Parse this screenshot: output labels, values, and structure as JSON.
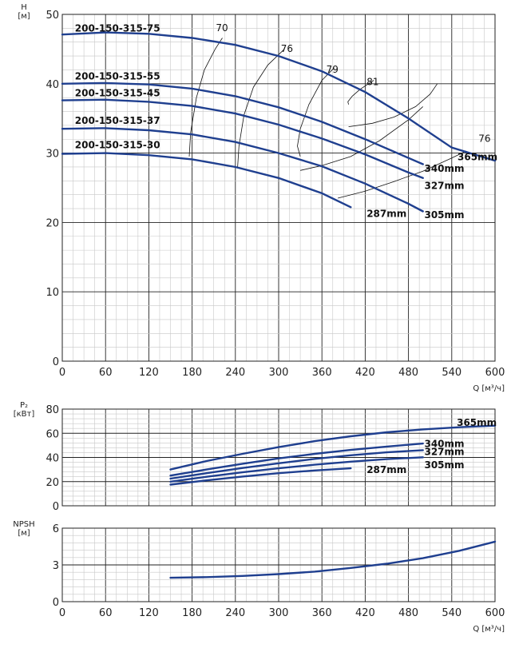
{
  "chart_data": [
    {
      "type": "line",
      "name": "head",
      "ylabel": "H\n[м]",
      "xlabel": "Q [м³/ч]",
      "xlim": [
        0,
        600
      ],
      "ylim": [
        0,
        50
      ],
      "x_ticks": [
        0,
        60,
        120,
        180,
        240,
        300,
        360,
        420,
        480,
        540,
        600
      ],
      "y_ticks": [
        0,
        10,
        20,
        30,
        40,
        50
      ],
      "grid": true,
      "curve_labels": [
        {
          "text": "200-150-315-75",
          "anchor": [
            2,
            47.5
          ]
        },
        {
          "text": "200-150-315-55",
          "anchor": [
            2,
            40.6
          ]
        },
        {
          "text": "200-150-315-45",
          "anchor": [
            2,
            38.2
          ]
        },
        {
          "text": "200-150-315-37",
          "anchor": [
            2,
            34.2
          ]
        },
        {
          "text": "200-150-315-30",
          "anchor": [
            2,
            30.7
          ]
        }
      ],
      "series": [
        {
          "name": "365mm",
          "color": "#1f3f8f",
          "label_at": [
            548,
            29.0
          ],
          "x": [
            0,
            60,
            120,
            180,
            240,
            300,
            360,
            420,
            480,
            540,
            600
          ],
          "y": [
            47.1,
            47.4,
            47.2,
            46.6,
            45.6,
            44.0,
            41.8,
            38.8,
            35.0,
            30.8,
            28.9
          ]
        },
        {
          "name": "340mm",
          "color": "#1f3f8f",
          "label_at": [
            502,
            27.3
          ],
          "x": [
            0,
            60,
            120,
            180,
            240,
            300,
            360,
            420,
            480,
            500
          ],
          "y": [
            40.0,
            40.1,
            39.9,
            39.3,
            38.2,
            36.6,
            34.5,
            32.0,
            29.3,
            28.4
          ]
        },
        {
          "name": "327mm",
          "color": "#1f3f8f",
          "label_at": [
            502,
            24.8
          ],
          "x": [
            0,
            60,
            120,
            180,
            240,
            300,
            360,
            420,
            480,
            500
          ],
          "y": [
            37.6,
            37.7,
            37.4,
            36.8,
            35.7,
            34.1,
            32.1,
            29.8,
            27.2,
            26.4
          ]
        },
        {
          "name": "305mm",
          "color": "#1f3f8f",
          "label_at": [
            502,
            20.6
          ],
          "x": [
            0,
            60,
            120,
            180,
            240,
            300,
            360,
            420,
            480,
            500
          ],
          "y": [
            33.5,
            33.6,
            33.3,
            32.7,
            31.6,
            30.0,
            28.1,
            25.6,
            22.7,
            21.6
          ]
        },
        {
          "name": "287mm",
          "color": "#1f3f8f",
          "label_at": [
            422,
            20.8
          ],
          "x": [
            0,
            60,
            120,
            180,
            240,
            300,
            360,
            400
          ],
          "y": [
            29.9,
            30.0,
            29.7,
            29.1,
            28.0,
            26.4,
            24.2,
            22.2
          ]
        }
      ],
      "efficiency_labels": [
        {
          "text": "70",
          "anchor": [
            213,
            47.6
          ]
        },
        {
          "text": "76",
          "anchor": [
            303,
            44.6
          ]
        },
        {
          "text": "79",
          "anchor": [
            366,
            41.6
          ]
        },
        {
          "text": "81",
          "anchor": [
            422,
            39.8
          ]
        },
        {
          "text": "76",
          "anchor": [
            577,
            31.6
          ]
        }
      ],
      "efficiency_lines": [
        {
          "x": [
            176,
            178,
            186,
            197,
            212,
            222
          ],
          "y": [
            29.5,
            33,
            38,
            42,
            45,
            46.6
          ]
        },
        {
          "x": [
            243,
            245,
            252,
            265,
            285,
            308
          ],
          "y": [
            27.8,
            31,
            35.5,
            39.5,
            42.7,
            45
          ]
        },
        {
          "x": [
            330,
            326,
            330,
            342,
            360,
            377
          ],
          "y": [
            29.5,
            31,
            33.5,
            37,
            40.5,
            42.3
          ]
        },
        {
          "x": [
            397,
            396,
            402,
            413,
            432
          ],
          "y": [
            37,
            37.4,
            38.2,
            39.2,
            40.5
          ]
        },
        {
          "x": [
            330,
            360,
            400,
            440,
            480,
            500
          ],
          "y": [
            27.5,
            28.2,
            29.5,
            31.8,
            34.8,
            36.7
          ]
        },
        {
          "x": [
            397,
            430,
            460,
            490,
            510,
            520
          ],
          "y": [
            33.8,
            34.3,
            35.2,
            36.7,
            38.5,
            40
          ]
        },
        {
          "x": [
            382,
            420,
            460,
            500,
            540,
            560
          ],
          "y": [
            23.5,
            24.5,
            25.9,
            27.4,
            29.3,
            30.3
          ]
        }
      ]
    },
    {
      "type": "line",
      "name": "power",
      "ylabel": "P₂\n[кВт]",
      "xlim": [
        0,
        600
      ],
      "ylim": [
        0,
        80
      ],
      "x_ticks": [
        0,
        60,
        120,
        180,
        240,
        300,
        360,
        420,
        480,
        540,
        600
      ],
      "y_ticks": [
        0,
        20,
        40,
        60,
        80
      ],
      "grid": true,
      "series": [
        {
          "name": "365mm",
          "color": "#1f3f8f",
          "label_at": [
            547,
            66
          ],
          "x": [
            150,
            200,
            250,
            300,
            350,
            400,
            450,
            500,
            550,
            600
          ],
          "y": [
            30.0,
            37.0,
            43.0,
            48.5,
            53.5,
            57.5,
            60.8,
            63.2,
            65.0,
            66.3
          ]
        },
        {
          "name": "340mm",
          "color": "#1f3f8f",
          "label_at": [
            502,
            48.5
          ],
          "x": [
            150,
            200,
            250,
            300,
            350,
            400,
            450,
            500
          ],
          "y": [
            25.0,
            30.0,
            34.8,
            39.2,
            43.0,
            46.2,
            49.0,
            51.5
          ]
        },
        {
          "name": "327mm",
          "color": "#1f3f8f",
          "label_at": [
            502,
            42
          ],
          "x": [
            150,
            200,
            250,
            300,
            350,
            400,
            450,
            500
          ],
          "y": [
            22.5,
            27.0,
            31.3,
            35.2,
            38.8,
            41.8,
            44.2,
            46.0
          ]
        },
        {
          "name": "305mm",
          "color": "#1f3f8f",
          "label_at": [
            502,
            31
          ],
          "x": [
            150,
            200,
            250,
            300,
            350,
            400,
            450,
            500
          ],
          "y": [
            20.0,
            24.0,
            27.7,
            31.0,
            34.0,
            36.5,
            38.6,
            40.1
          ]
        },
        {
          "name": "287mm",
          "color": "#1f3f8f",
          "label_at": [
            422,
            27
          ],
          "x": [
            150,
            200,
            250,
            300,
            350,
            400
          ],
          "y": [
            17.5,
            21.0,
            24.2,
            27.0,
            29.2,
            31.0
          ]
        }
      ]
    },
    {
      "type": "line",
      "name": "npsh",
      "ylabel": "NPSH\n[м]",
      "xlabel": "Q [м³/ч]",
      "xlim": [
        0,
        600
      ],
      "ylim": [
        0,
        6
      ],
      "x_ticks": [
        0,
        60,
        120,
        180,
        240,
        300,
        360,
        420,
        480,
        540,
        600
      ],
      "y_ticks": [
        0,
        3,
        6
      ],
      "grid": true,
      "series": [
        {
          "name": "",
          "color": "#1f3f8f",
          "x": [
            150,
            200,
            250,
            300,
            350,
            400,
            450,
            500,
            550,
            600
          ],
          "y": [
            1.95,
            2.0,
            2.1,
            2.25,
            2.45,
            2.75,
            3.1,
            3.55,
            4.15,
            4.9
          ]
        }
      ]
    }
  ]
}
